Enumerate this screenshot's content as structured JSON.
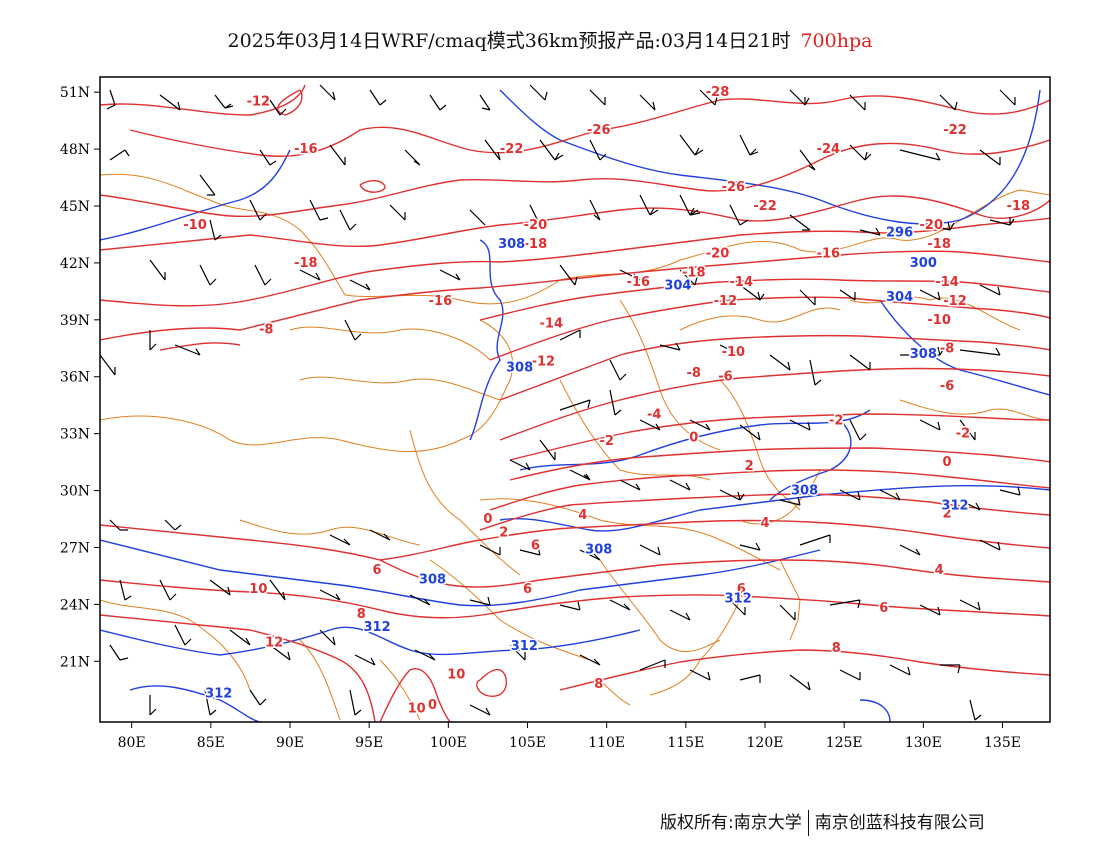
{
  "header": {
    "title": "2025年03月14日WRF/cmaq模式36km预报产品:03月14日21时",
    "level": "700hpa"
  },
  "axes": {
    "lat_labels": [
      "51N",
      "48N",
      "45N",
      "42N",
      "39N",
      "36N",
      "33N",
      "30N",
      "27N",
      "24N",
      "21N"
    ],
    "lon_labels": [
      "80E",
      "85E",
      "90E",
      "95E",
      "100E",
      "105E",
      "110E",
      "115E",
      "120E",
      "125E",
      "130E",
      "135E"
    ]
  },
  "colors": {
    "temperature_contour": "#e03030",
    "height_contour": "#2040e0",
    "boundaries": "#e08020",
    "wind_barb": "#000000"
  },
  "temperature_labels": [
    {
      "text": "-12",
      "lon": 88,
      "lat": 50.5
    },
    {
      "text": "-16",
      "lon": 91,
      "lat": 48
    },
    {
      "text": "-22",
      "lon": 104,
      "lat": 48
    },
    {
      "text": "-28",
      "lon": 117,
      "lat": 51
    },
    {
      "text": "-26",
      "lon": 109.5,
      "lat": 49
    },
    {
      "text": "-24",
      "lon": 124,
      "lat": 48
    },
    {
      "text": "-22",
      "lon": 132,
      "lat": 49
    },
    {
      "text": "-26",
      "lon": 118,
      "lat": 46
    },
    {
      "text": "-22",
      "lon": 120,
      "lat": 45
    },
    {
      "text": "-20",
      "lon": 130.5,
      "lat": 44
    },
    {
      "text": "-18",
      "lon": 136,
      "lat": 45
    },
    {
      "text": "-10",
      "lon": 84,
      "lat": 44
    },
    {
      "text": "-20",
      "lon": 105.5,
      "lat": 44
    },
    {
      "text": "-18",
      "lon": 105.5,
      "lat": 43
    },
    {
      "text": "-18",
      "lon": 91,
      "lat": 42
    },
    {
      "text": "-20",
      "lon": 117,
      "lat": 42.5
    },
    {
      "text": "-16",
      "lon": 124,
      "lat": 42.5
    },
    {
      "text": "-18",
      "lon": 131,
      "lat": 43
    },
    {
      "text": "-18",
      "lon": 115.5,
      "lat": 41.5
    },
    {
      "text": "-14",
      "lon": 118.5,
      "lat": 41
    },
    {
      "text": "-14",
      "lon": 131.5,
      "lat": 41
    },
    {
      "text": "-16",
      "lon": 99.5,
      "lat": 40
    },
    {
      "text": "-16",
      "lon": 112,
      "lat": 41
    },
    {
      "text": "-12",
      "lon": 117.5,
      "lat": 40
    },
    {
      "text": "-12",
      "lon": 132,
      "lat": 40
    },
    {
      "text": "-8",
      "lon": 88.5,
      "lat": 38.5
    },
    {
      "text": "-14",
      "lon": 106.5,
      "lat": 38.8
    },
    {
      "text": "-10",
      "lon": 131,
      "lat": 39
    },
    {
      "text": "-12",
      "lon": 106,
      "lat": 36.8
    },
    {
      "text": "-10",
      "lon": 118,
      "lat": 37.3
    },
    {
      "text": "-8",
      "lon": 115.5,
      "lat": 36.2
    },
    {
      "text": "-6",
      "lon": 117.5,
      "lat": 36
    },
    {
      "text": "-8",
      "lon": 131.5,
      "lat": 37.5
    },
    {
      "text": "-6",
      "lon": 131.5,
      "lat": 35.5
    },
    {
      "text": "-4",
      "lon": 113,
      "lat": 34
    },
    {
      "text": "-2",
      "lon": 124.5,
      "lat": 33.7
    },
    {
      "text": "-2",
      "lon": 110,
      "lat": 32.6
    },
    {
      "text": "0",
      "lon": 115.5,
      "lat": 32.8
    },
    {
      "text": "-2",
      "lon": 132.5,
      "lat": 33
    },
    {
      "text": "0",
      "lon": 131.5,
      "lat": 31.5
    },
    {
      "text": "2",
      "lon": 119,
      "lat": 31.3
    },
    {
      "text": "2",
      "lon": 131.5,
      "lat": 28.8
    },
    {
      "text": "0",
      "lon": 102.5,
      "lat": 28.5
    },
    {
      "text": "2",
      "lon": 103.5,
      "lat": 27.8
    },
    {
      "text": "4",
      "lon": 108.5,
      "lat": 28.7
    },
    {
      "text": "6",
      "lon": 105.5,
      "lat": 27.1
    },
    {
      "text": "4",
      "lon": 120,
      "lat": 28.3
    },
    {
      "text": "4",
      "lon": 131,
      "lat": 25.8
    },
    {
      "text": "6",
      "lon": 95.5,
      "lat": 25.8
    },
    {
      "text": "6",
      "lon": 105,
      "lat": 24.8
    },
    {
      "text": "6",
      "lon": 118.5,
      "lat": 24.8
    },
    {
      "text": "6",
      "lon": 127.5,
      "lat": 23.8
    },
    {
      "text": "8",
      "lon": 94.5,
      "lat": 23.5
    },
    {
      "text": "10",
      "lon": 88,
      "lat": 24.8
    },
    {
      "text": "12",
      "lon": 89,
      "lat": 22
    },
    {
      "text": "8",
      "lon": 124.5,
      "lat": 21.7
    },
    {
      "text": "10",
      "lon": 100.5,
      "lat": 20.3
    },
    {
      "text": "10",
      "lon": 98,
      "lat": 18.5
    },
    {
      "text": "0",
      "lon": 99,
      "lat": 18.7
    },
    {
      "text": "8",
      "lon": 109.5,
      "lat": 19.8
    }
  ],
  "height_labels": [
    {
      "text": "308",
      "lon": 104,
      "lat": 43
    },
    {
      "text": "296",
      "lon": 128.5,
      "lat": 43.6
    },
    {
      "text": "300",
      "lon": 130,
      "lat": 42
    },
    {
      "text": "304",
      "lon": 114.5,
      "lat": 40.8
    },
    {
      "text": "304",
      "lon": 128.5,
      "lat": 40.2
    },
    {
      "text": "308",
      "lon": 104.5,
      "lat": 36.5
    },
    {
      "text": "308",
      "lon": 130,
      "lat": 37.2
    },
    {
      "text": "308",
      "lon": 122.5,
      "lat": 30
    },
    {
      "text": "312",
      "lon": 132,
      "lat": 29.2
    },
    {
      "text": "308",
      "lon": 109.5,
      "lat": 26.9
    },
    {
      "text": "308",
      "lon": 99,
      "lat": 25.3
    },
    {
      "text": "312",
      "lon": 118.3,
      "lat": 24.3
    },
    {
      "text": "312",
      "lon": 95.5,
      "lat": 22.8
    },
    {
      "text": "312",
      "lon": 104.8,
      "lat": 21.8
    },
    {
      "text": "312",
      "lon": 85.5,
      "lat": 19.3
    }
  ],
  "footer": {
    "copyright_label": "版权所有:",
    "org1": "南京大学",
    "org2": "南京创蓝科技有限公司"
  }
}
